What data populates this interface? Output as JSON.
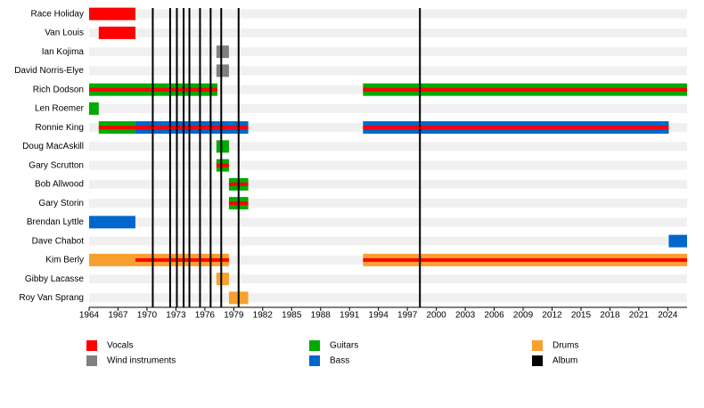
{
  "chart_data": {
    "type": "timeline",
    "xlim": [
      1964,
      2026
    ],
    "xticks": [
      1964,
      1967,
      1970,
      1973,
      1976,
      1979,
      1982,
      1985,
      1988,
      1991,
      1994,
      1997,
      2000,
      2003,
      2006,
      2009,
      2012,
      2015,
      2018,
      2021,
      2024
    ],
    "legend": [
      {
        "name": "Vocals",
        "color": "#ff0000"
      },
      {
        "name": "Wind instruments",
        "color": "#808080"
      },
      {
        "name": "Guitars",
        "color": "#00aa00"
      },
      {
        "name": "Bass",
        "color": "#0066cc"
      },
      {
        "name": "Drums",
        "color": "#f7a030"
      },
      {
        "name": "Album",
        "color": "#000000"
      }
    ],
    "albums": [
      1970.6,
      1972.4,
      1973.1,
      1973.8,
      1974.4,
      1975.5,
      1976.6,
      1977.7,
      1979.5,
      1998.3
    ],
    "members": [
      {
        "name": "Race Holiday",
        "periods": [
          {
            "start": 1964,
            "end": 1968.8,
            "roles": [
              "Vocals"
            ]
          }
        ]
      },
      {
        "name": "Van Louis",
        "periods": [
          {
            "start": 1965,
            "end": 1968.8,
            "roles": [
              "Vocals"
            ]
          }
        ]
      },
      {
        "name": "Ian Kojima",
        "periods": [
          {
            "start": 1977.2,
            "end": 1978.5,
            "roles": [
              "Wind instruments"
            ]
          }
        ]
      },
      {
        "name": "David Norris-Elye",
        "periods": [
          {
            "start": 1977.2,
            "end": 1978.5,
            "roles": [
              "Wind instruments"
            ]
          }
        ]
      },
      {
        "name": "Rich Dodson",
        "periods": [
          {
            "start": 1964,
            "end": 1977.3,
            "roles": [
              "Guitars",
              "Vocals"
            ]
          },
          {
            "start": 1992.4,
            "end": 2026,
            "roles": [
              "Guitars",
              "Vocals"
            ]
          }
        ]
      },
      {
        "name": "Len Roemer",
        "periods": [
          {
            "start": 1964,
            "end": 1965,
            "roles": [
              "Guitars"
            ]
          }
        ]
      },
      {
        "name": "Ronnie King",
        "periods": [
          {
            "start": 1965,
            "end": 1968.8,
            "roles": [
              "Guitars",
              "Vocals"
            ]
          },
          {
            "start": 1968.8,
            "end": 1980.5,
            "roles": [
              "Bass",
              "Vocals"
            ]
          },
          {
            "start": 1992.4,
            "end": 2024.1,
            "roles": [
              "Bass",
              "Vocals"
            ]
          }
        ]
      },
      {
        "name": "Doug MacAskill",
        "periods": [
          {
            "start": 1977.2,
            "end": 1978.5,
            "roles": [
              "Guitars"
            ]
          }
        ]
      },
      {
        "name": "Gary Scrutton",
        "periods": [
          {
            "start": 1977.2,
            "end": 1978.5,
            "roles": [
              "Guitars",
              "Vocals"
            ]
          }
        ]
      },
      {
        "name": "Bob Allwood",
        "periods": [
          {
            "start": 1978.5,
            "end": 1980.5,
            "roles": [
              "Guitars",
              "Vocals"
            ]
          }
        ]
      },
      {
        "name": "Gary Storin",
        "periods": [
          {
            "start": 1978.5,
            "end": 1980.5,
            "roles": [
              "Guitars",
              "Vocals"
            ]
          }
        ]
      },
      {
        "name": "Brendan Lyttle",
        "periods": [
          {
            "start": 1964,
            "end": 1968.8,
            "roles": [
              "Bass"
            ]
          }
        ]
      },
      {
        "name": "Dave Chabot",
        "periods": [
          {
            "start": 2024.1,
            "end": 2026,
            "roles": [
              "Bass"
            ]
          }
        ]
      },
      {
        "name": "Kim Berly",
        "periods": [
          {
            "start": 1964,
            "end": 1968.8,
            "roles": [
              "Drums"
            ]
          },
          {
            "start": 1968.8,
            "end": 1978.5,
            "roles": [
              "Drums",
              "Vocals"
            ]
          },
          {
            "start": 1992.4,
            "end": 2026,
            "roles": [
              "Drums",
              "Vocals"
            ]
          }
        ]
      },
      {
        "name": "Gibby Lacasse",
        "periods": [
          {
            "start": 1977.2,
            "end": 1978.5,
            "roles": [
              "Drums"
            ]
          }
        ]
      },
      {
        "name": "Roy Van Sprang",
        "periods": [
          {
            "start": 1978.5,
            "end": 1980.5,
            "roles": [
              "Drums"
            ]
          }
        ]
      }
    ]
  }
}
